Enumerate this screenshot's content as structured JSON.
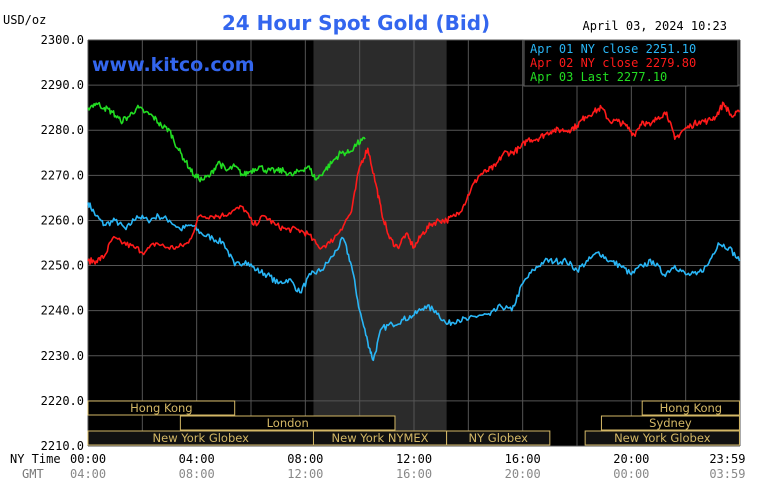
{
  "header": {
    "title": "24 Hour Spot Gold (Bid)",
    "unit": "USD/oz",
    "datetime": "April 03, 2024 10:23",
    "watermark": "www.kitco.com"
  },
  "legend": [
    {
      "label": "Apr 01 NY close 2251.10",
      "color": "#29b6f6"
    },
    {
      "label": "Apr 02 NY close 2279.80",
      "color": "#ff1a1a"
    },
    {
      "label": "Apr 03 Last 2277.10",
      "color": "#22dd22"
    }
  ],
  "axis": {
    "ny_time_label": "NY Time",
    "gmt_label": "GMT",
    "y_ticks": [
      "2300.0",
      "2290.0",
      "2280.0",
      "2270.0",
      "2260.0",
      "2250.0",
      "2240.0",
      "2230.0",
      "2220.0",
      "2210.0"
    ],
    "x_ny": [
      "00:00",
      "04:00",
      "08:00",
      "12:00",
      "16:00",
      "20:00",
      "23:59"
    ],
    "x_gmt": [
      "04:00",
      "08:00",
      "12:00",
      "16:00",
      "20:00",
      "00:00",
      "03:59"
    ]
  },
  "sessions": [
    {
      "label": "Hong Kong",
      "start": 0,
      "end": 5.4,
      "row": 0
    },
    {
      "label": "London",
      "start": 3.4,
      "end": 11.3,
      "row": 1
    },
    {
      "label": "New York Globex",
      "start": 0,
      "end": 8.3,
      "row": 2
    },
    {
      "label": "New York NYMEX",
      "start": 8.3,
      "end": 13.2,
      "row": 2
    },
    {
      "label": "NY Globex",
      "start": 13.2,
      "end": 17.0,
      "row": 2
    },
    {
      "label": "Sydney",
      "start": 18.9,
      "end": 23.98,
      "row": 1
    },
    {
      "label": "Hong Kong",
      "start": 20.4,
      "end": 23.98,
      "row": 0
    },
    {
      "label": "New York Globex",
      "start": 18.3,
      "end": 23.98,
      "row": 2
    }
  ],
  "chart_data": {
    "type": "line",
    "x_unit": "hours after 00:00 NY time",
    "xlim": [
      0,
      24
    ],
    "ylim": [
      2210,
      2300
    ],
    "shaded_region": [
      8.3,
      13.2
    ],
    "series": [
      {
        "name": "Apr 01 NY close 2251.10",
        "color": "#29b6f6",
        "x": [
          0,
          0.3,
          0.6,
          1.0,
          1.4,
          1.8,
          2.2,
          2.6,
          3.0,
          3.4,
          3.8,
          4.2,
          4.6,
          5.0,
          5.4,
          5.8,
          6.2,
          6.6,
          7.0,
          7.4,
          7.8,
          8.2,
          8.6,
          9.0,
          9.4,
          9.7,
          10.0,
          10.3,
          10.5,
          10.8,
          11.2,
          11.6,
          12.0,
          12.4,
          12.8,
          13.2,
          13.6,
          14.0,
          14.4,
          14.8,
          15.2,
          15.6,
          16.0,
          16.4,
          16.8,
          17.2,
          17.6,
          18.0,
          18.4,
          18.8,
          19.2,
          19.6,
          20.0,
          20.4,
          20.8,
          21.2,
          21.6,
          22.0,
          22.4,
          22.8,
          23.2,
          23.6,
          23.98
        ],
        "y": [
          2264,
          2261,
          2259,
          2260,
          2258,
          2261,
          2260,
          2261,
          2260,
          2258,
          2259,
          2257,
          2256,
          2255,
          2250,
          2251,
          2249,
          2248,
          2246,
          2247,
          2244,
          2248,
          2249,
          2252,
          2256,
          2250,
          2240,
          2233,
          2229,
          2236,
          2237,
          2238,
          2239,
          2241,
          2240,
          2237,
          2238,
          2238,
          2239,
          2239,
          2241,
          2240,
          2246,
          2249,
          2251,
          2251,
          2251,
          2249,
          2251,
          2253,
          2251,
          2250,
          2248,
          2250,
          2251,
          2248,
          2250,
          2248,
          2248,
          2250,
          2255,
          2254,
          2251
        ]
      },
      {
        "name": "Apr 02 NY close 2279.80",
        "color": "#ff1a1a",
        "x": [
          0,
          0.3,
          0.6,
          0.9,
          1.3,
          1.7,
          2.1,
          2.5,
          2.9,
          3.3,
          3.7,
          4.1,
          4.5,
          4.9,
          5.3,
          5.7,
          6.1,
          6.5,
          6.9,
          7.3,
          7.7,
          8.1,
          8.5,
          8.9,
          9.3,
          9.7,
          10.0,
          10.3,
          10.6,
          10.8,
          11.1,
          11.4,
          11.7,
          12.0,
          12.3,
          12.6,
          12.9,
          13.2,
          13.5,
          13.8,
          14.1,
          14.4,
          14.7,
          15.0,
          15.3,
          15.6,
          15.9,
          16.2,
          16.5,
          16.8,
          17.1,
          17.4,
          17.7,
          18.0,
          18.3,
          18.6,
          18.9,
          19.2,
          19.5,
          19.8,
          20.1,
          20.4,
          20.7,
          21.0,
          21.3,
          21.6,
          21.9,
          22.2,
          22.5,
          22.8,
          23.1,
          23.4,
          23.7,
          23.98
        ],
        "y": [
          2251,
          2251,
          2252,
          2256,
          2255,
          2254,
          2253,
          2255,
          2254,
          2254,
          2255,
          2261,
          2261,
          2261,
          2262,
          2263,
          2259,
          2261,
          2259,
          2258,
          2258,
          2257,
          2254,
          2255,
          2258,
          2262,
          2272,
          2276,
          2268,
          2262,
          2256,
          2254,
          2257,
          2254,
          2257,
          2259,
          2260,
          2260,
          2261,
          2263,
          2267,
          2270,
          2271,
          2272,
          2275,
          2275,
          2276,
          2278,
          2278,
          2279,
          2280,
          2280,
          2280,
          2281,
          2283,
          2284,
          2285,
          2282,
          2282,
          2281,
          2279,
          2282,
          2281,
          2283,
          2284,
          2278,
          2280,
          2281,
          2282,
          2282,
          2283,
          2286,
          2283,
          2284
        ]
      },
      {
        "name": "Apr 03 Last 2277.10",
        "color": "#22dd22",
        "x": [
          0,
          0.3,
          0.6,
          0.9,
          1.2,
          1.5,
          1.8,
          2.1,
          2.4,
          2.7,
          3.0,
          3.3,
          3.6,
          3.9,
          4.2,
          4.5,
          4.8,
          5.1,
          5.4,
          5.7,
          6.0,
          6.3,
          6.6,
          6.9,
          7.2,
          7.5,
          7.8,
          8.1,
          8.4,
          8.7,
          9.0,
          9.3,
          9.6,
          9.9,
          10.2
        ],
        "y": [
          2285,
          2286,
          2285,
          2284,
          2282,
          2283,
          2285,
          2284,
          2283,
          2281,
          2280,
          2276,
          2273,
          2270,
          2269,
          2270,
          2273,
          2271,
          2272,
          2270,
          2271,
          2272,
          2271,
          2271,
          2271,
          2270,
          2271,
          2272,
          2269,
          2271,
          2273,
          2275,
          2275,
          2277,
          2278
        ]
      }
    ]
  }
}
